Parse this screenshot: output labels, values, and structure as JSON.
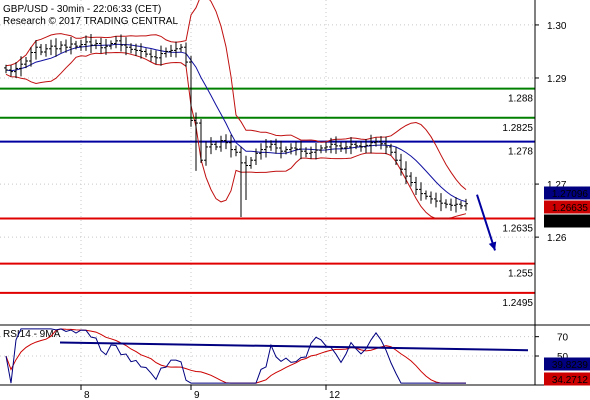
{
  "header": {
    "line1": "GBP/USD - 30min - 22:06:33 (CET)",
    "line2": "Research © 2017 TRADING CENTRAL"
  },
  "chart_data": {
    "type": "candlestick",
    "symbol": "GBP/USD",
    "timeframe": "30min",
    "price_axis": {
      "ticks": [
        1.3,
        1.29,
        1.27,
        1.26
      ],
      "tick_labels": [
        "1.30",
        "1.29",
        "1.27",
        "1.26"
      ],
      "ylim": [
        1.244,
        1.3047
      ]
    },
    "time_axis": {
      "tick_labels": [
        "8",
        "9",
        "12"
      ]
    },
    "close_series": [
      1.2915,
      1.2912,
      1.2918,
      1.2926,
      1.2932,
      1.2948,
      1.2958,
      1.2949,
      1.2955,
      1.296,
      1.2955,
      1.2962,
      1.2958,
      1.2964,
      1.296,
      1.2963,
      1.2968,
      1.2962,
      1.2965,
      1.2957,
      1.296,
      1.2965,
      1.297,
      1.2962,
      1.2958,
      1.2954,
      1.2952,
      1.295,
      1.2945,
      1.294,
      1.2938,
      1.2946,
      1.295,
      1.2952,
      1.2955,
      1.2958,
      1.293,
      1.282,
      1.2815,
      1.2745,
      1.277,
      1.2775,
      1.277,
      1.2782,
      1.2778,
      1.2765,
      1.276,
      1.274,
      1.2735,
      1.2745,
      1.2758,
      1.2765,
      1.277,
      1.2775,
      1.2768,
      1.2762,
      1.2765,
      1.2768,
      1.2766,
      1.2762,
      1.2758,
      1.276,
      1.2764,
      1.2768,
      1.277,
      1.2775,
      1.2772,
      1.2768,
      1.277,
      1.2775,
      1.2772,
      1.277,
      1.2773,
      1.2778,
      1.278,
      1.2776,
      1.277,
      1.276,
      1.2745,
      1.2728,
      1.2715,
      1.2703,
      1.269,
      1.2682,
      1.2677,
      1.2672,
      1.2668,
      1.2664,
      1.2662,
      1.266,
      1.2662,
      1.2659,
      1.2663
    ],
    "overlays": {
      "moving_average_end": 1.27096,
      "bollinger_upper_end": 1.2695,
      "bollinger_lower_end": 1.2644
    },
    "levels": [
      {
        "value": 1.288,
        "label": "1.288",
        "color": "#008000"
      },
      {
        "value": 1.2825,
        "label": "1.2825",
        "color": "#008000"
      },
      {
        "value": 1.278,
        "label": "1.278",
        "color": "#0000a0"
      },
      {
        "value": 1.2635,
        "label": "1.2635",
        "color": "#e00000"
      },
      {
        "value": 1.255,
        "label": "1.255",
        "color": "#e00000"
      },
      {
        "value": 1.2495,
        "label": "1.2495",
        "color": "#e00000"
      }
    ],
    "price_boxes": [
      {
        "value": 1.27096,
        "label": "1.27096",
        "bg": "#000080",
        "fg": "#ffffff"
      },
      {
        "value": 1.26635,
        "label": "1.26635",
        "bg": "#cc0000",
        "fg": "#ffffff"
      },
      {
        "value": 1.2659,
        "label": "1.2659",
        "bg": "#000000",
        "fg": "#ffffff"
      }
    ],
    "arrow": {
      "from_price": 1.268,
      "to_price": 1.2575,
      "color": "#0000a0"
    },
    "rsi": {
      "title": "RSI14 - 9MA",
      "ticks": [
        70,
        50
      ],
      "tick_labels": [
        "70",
        "50"
      ],
      "ylim": [
        20,
        80
      ],
      "trendline": {
        "start": 64.0,
        "end": 56.0
      },
      "value_boxes": [
        {
          "value": 39.8239,
          "label": "39.8239",
          "bg": "#000080",
          "fg": "#ffffff"
        },
        {
          "value": 34.2712,
          "label": "34.2712",
          "bg": "#cc0000",
          "fg": "#ffffff"
        }
      ]
    },
    "grid": true,
    "colors": {
      "candles": "#000000",
      "ma": "#1010a0",
      "bands": "#c01010",
      "rsi": "#000080",
      "rsi_ma": "#cc0000"
    }
  }
}
